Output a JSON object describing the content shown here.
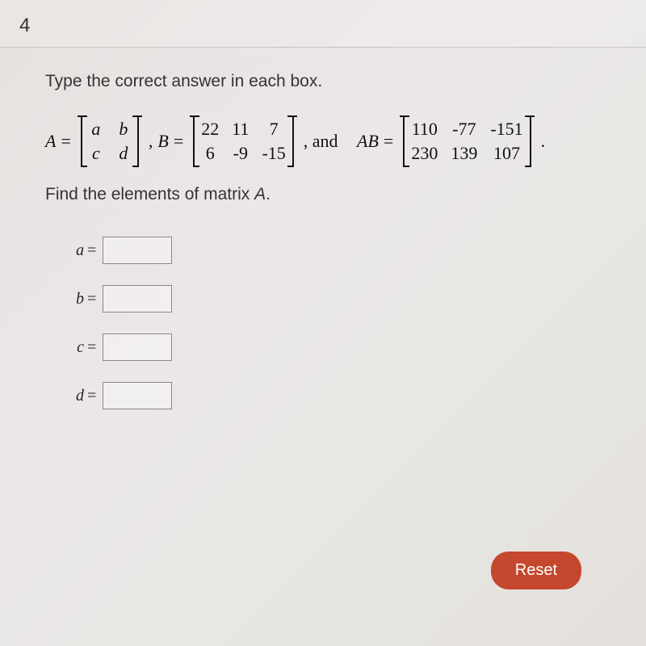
{
  "question_number": "4",
  "instruction": "Type the correct answer in each box.",
  "equation": {
    "A_label": "A",
    "B_label": "B",
    "AB_label": "AB",
    "eq_sign": "=",
    "comma": ",",
    "and_text": ", and",
    "period": ".",
    "matrix_A": {
      "rows": 2,
      "cols": 2,
      "cells": [
        "a",
        "b",
        "c",
        "d"
      ],
      "italic_cells": true
    },
    "matrix_B": {
      "rows": 2,
      "cols": 3,
      "cells": [
        "22",
        "11",
        "7",
        "6",
        "-9",
        "-15"
      ],
      "italic_cells": false
    },
    "matrix_AB": {
      "rows": 2,
      "cols": 3,
      "cells": [
        "110",
        "-77",
        "-151",
        "230",
        "139",
        "107"
      ],
      "italic_cells": false
    }
  },
  "find_text_prefix": "Find the elements of matrix ",
  "find_text_var": "A",
  "find_text_suffix": ".",
  "answers": [
    {
      "label": "a",
      "value": ""
    },
    {
      "label": "b",
      "value": ""
    },
    {
      "label": "c",
      "value": ""
    },
    {
      "label": "d",
      "value": ""
    }
  ],
  "reset_label": "Reset",
  "colors": {
    "reset_bg": "#c5472e",
    "reset_fg": "#ffffff",
    "text": "#333333",
    "input_border": "#888888"
  }
}
